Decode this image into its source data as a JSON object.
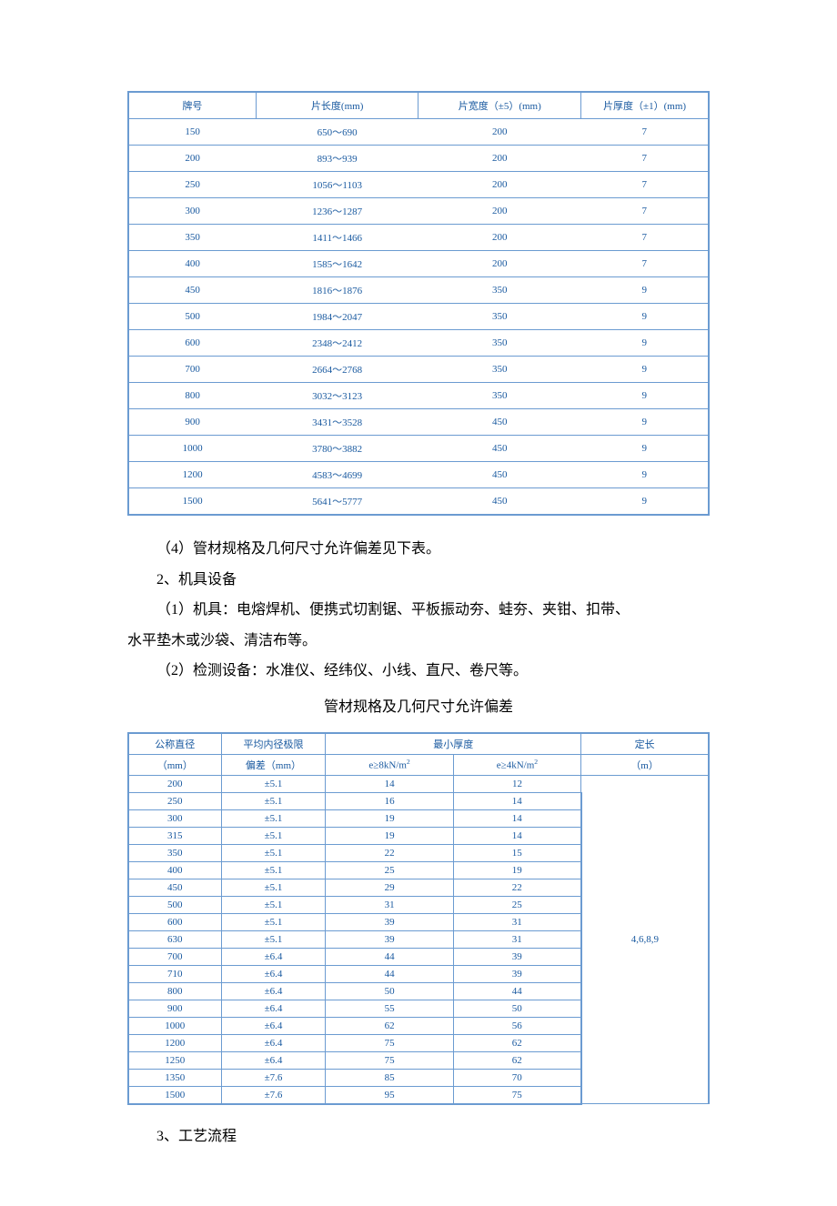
{
  "table1": {
    "columns": [
      "牌号",
      "片长度(mm)",
      "片宽度（±5）(mm)",
      "片厚度（±1）(mm)"
    ],
    "col_widths": [
      "22%",
      "28%",
      "28%",
      "22%"
    ],
    "rows": [
      [
        "150",
        "650～690",
        "200",
        "7"
      ],
      [
        "200",
        "893～939",
        "200",
        "7"
      ],
      [
        "250",
        "1056～1103",
        "200",
        "7"
      ],
      [
        "300",
        "1236～1287",
        "200",
        "7"
      ],
      [
        "350",
        "1411～1466",
        "200",
        "7"
      ],
      [
        "400",
        "1585～1642",
        "200",
        "7"
      ],
      [
        "450",
        "1816～1876",
        "350",
        "9"
      ],
      [
        "500",
        "1984～2047",
        "350",
        "9"
      ],
      [
        "600",
        "2348～2412",
        "350",
        "9"
      ],
      [
        "700",
        "2664～2768",
        "350",
        "9"
      ],
      [
        "800",
        "3032～3123",
        "350",
        "9"
      ],
      [
        "900",
        "3431～3528",
        "450",
        "9"
      ],
      [
        "1000",
        "3780～3882",
        "450",
        "9"
      ],
      [
        "1200",
        "4583～4699",
        "450",
        "9"
      ],
      [
        "1500",
        "5641～5777",
        "450",
        "9"
      ]
    ],
    "border_color": "#6b9bd1",
    "text_color": "#1a5aa0",
    "font_size": 11
  },
  "body": {
    "p1": "（4）管材规格及几何尺寸允许偏差见下表。",
    "h2": "2、机具设备",
    "p2a": "（1）机具：电熔焊机、便携式切割锯、平板振动夯、蛙夯、夹钳、扣带、",
    "p2b": "水平垫木或沙袋、清洁布等。",
    "p3": "（2）检测设备：水准仪、经纬仪、小线、直尺、卷尺等。",
    "caption": "管材规格及几何尺寸允许偏差",
    "h3": "3、工艺流程"
  },
  "table2": {
    "header_group": "最小厚度",
    "header_c1a": "公称直径",
    "header_c1b": "（mm）",
    "header_c2a": "平均内径极限",
    "header_c2b": "偏差（mm）",
    "header_c3": "e≥8kN/m²",
    "header_c4": "e≥4kN/m²",
    "header_c5a": "定长",
    "header_c5b": "（m）",
    "col_widths": [
      "16%",
      "18%",
      "22%",
      "22%",
      "22%"
    ],
    "rows": [
      [
        "200",
        "±5.1",
        "14",
        "12"
      ],
      [
        "250",
        "±5.1",
        "16",
        "14"
      ],
      [
        "300",
        "±5.1",
        "19",
        "14"
      ],
      [
        "315",
        "±5.1",
        "19",
        "14"
      ],
      [
        "350",
        "±5.1",
        "22",
        "15"
      ],
      [
        "400",
        "±5.1",
        "25",
        "19"
      ],
      [
        "450",
        "±5.1",
        "29",
        "22"
      ],
      [
        "500",
        "±5.1",
        "31",
        "25"
      ],
      [
        "600",
        "±5.1",
        "39",
        "31"
      ],
      [
        "630",
        "±5.1",
        "39",
        "31"
      ],
      [
        "700",
        "±6.4",
        "44",
        "39"
      ],
      [
        "710",
        "±6.4",
        "44",
        "39"
      ],
      [
        "800",
        "±6.4",
        "50",
        "44"
      ],
      [
        "900",
        "±6.4",
        "55",
        "50"
      ],
      [
        "1000",
        "±6.4",
        "62",
        "56"
      ],
      [
        "1200",
        "±6.4",
        "75",
        "62"
      ],
      [
        "1250",
        "±6.4",
        "75",
        "62"
      ],
      [
        "1350",
        "±7.6",
        "85",
        "70"
      ],
      [
        "1500",
        "±7.6",
        "95",
        "75"
      ]
    ],
    "merged_last": "4,6,8,9",
    "border_color": "#6b9bd1",
    "text_color": "#1a5aa0",
    "font_size": 11
  }
}
